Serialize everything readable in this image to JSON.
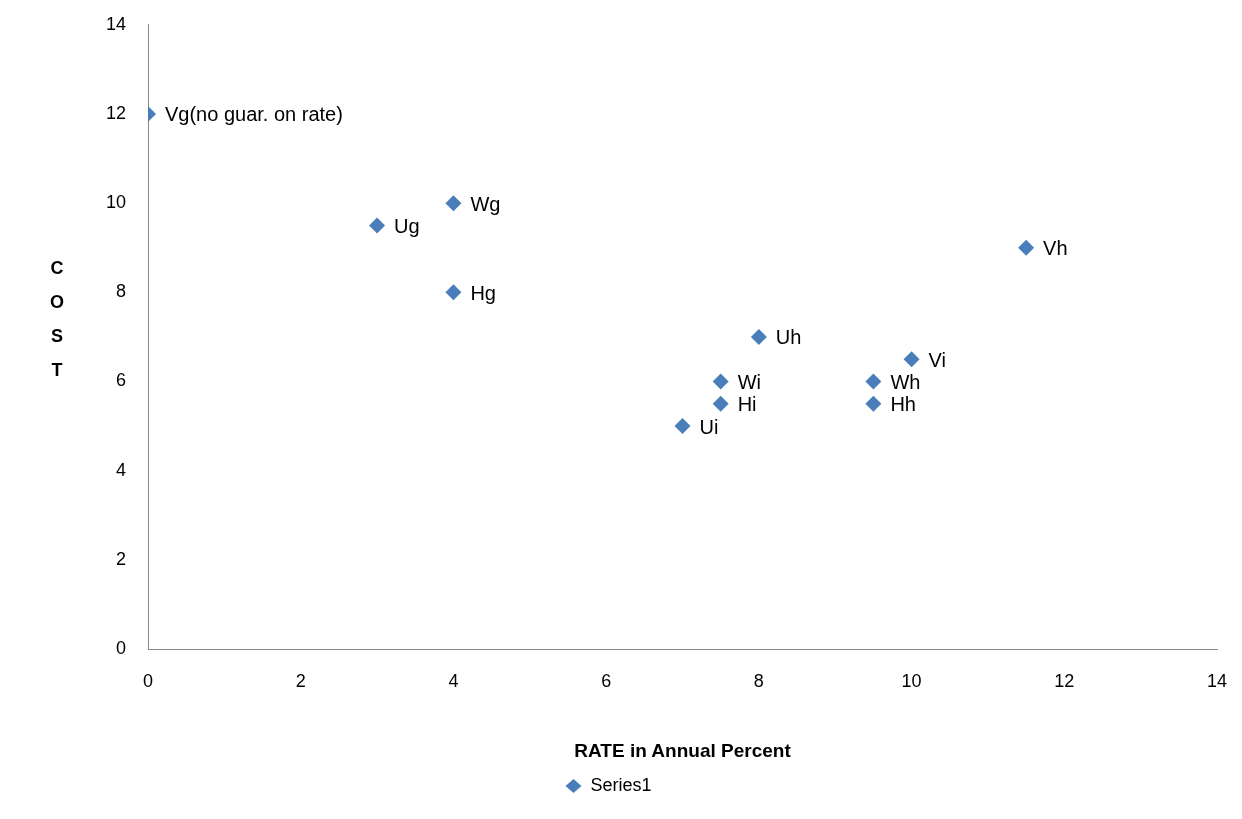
{
  "chart_data": {
    "type": "scatter",
    "xlabel": "RATE in Annual Percent",
    "ylabel": "COST",
    "x": [
      0,
      3,
      4,
      4,
      8,
      7.5,
      7.5,
      7,
      10,
      9.5,
      9.5,
      11.5
    ],
    "series": [
      {
        "name": "Series1",
        "color": "#4a7ebb",
        "values": [
          12,
          9.5,
          10,
          8,
          7,
          6,
          5.5,
          5,
          6.5,
          6,
          5.5,
          9
        ]
      }
    ],
    "xlim": [
      0,
      14
    ],
    "xticks": [
      0,
      2,
      4,
      6,
      8,
      10,
      12,
      14
    ],
    "ylim": [
      0,
      14
    ],
    "yticks": [
      0,
      2,
      4,
      6,
      8,
      10,
      12,
      14
    ],
    "marker": "diamond",
    "legend": "bottom",
    "annotations": [
      {
        "text": "Vg(no guar. on rate)",
        "x": 0,
        "y": 12
      },
      {
        "text": "Ug",
        "x": 3,
        "y": 9.5
      },
      {
        "text": "Wg",
        "x": 4,
        "y": 10
      },
      {
        "text": "Hg",
        "x": 4,
        "y": 8
      },
      {
        "text": "Uh",
        "x": 8,
        "y": 7
      },
      {
        "text": "Wi",
        "x": 7.5,
        "y": 6
      },
      {
        "text": "Hi",
        "x": 7.5,
        "y": 5.5
      },
      {
        "text": "Ui",
        "x": 7,
        "y": 5
      },
      {
        "text": "Vi",
        "x": 10,
        "y": 6.5
      },
      {
        "text": "Wh",
        "x": 9.5,
        "y": 6
      },
      {
        "text": "Hh",
        "x": 9.5,
        "y": 5.5
      },
      {
        "text": "Vh",
        "x": 11.5,
        "y": 9
      }
    ]
  }
}
